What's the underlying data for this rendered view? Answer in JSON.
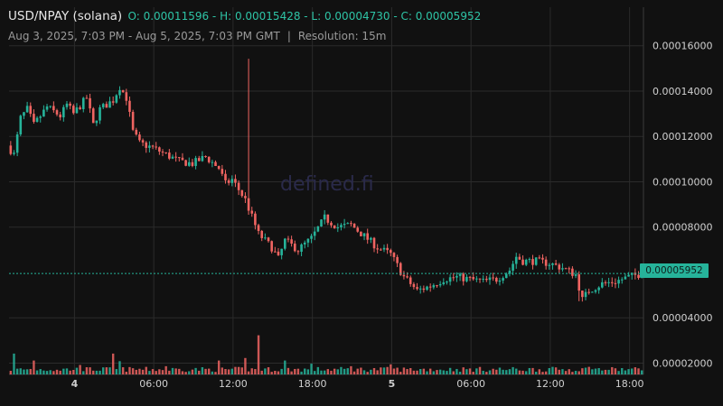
{
  "header": {
    "pair": "USD/NPAY (solana)",
    "ohlc": "O: 0.00011596 - H: 0.00015428 - L: 0.00004730 - C: 0.00005952",
    "range": "Aug 3, 2025, 7:03 PM - Aug 5, 2025, 7:03 PM GMT",
    "separator": "|",
    "resolution": "Resolution: 15m"
  },
  "watermark": "defined.fi",
  "last_price_label": "0.00005952",
  "colors": {
    "up": "#26b39a",
    "down": "#ef6461",
    "background": "#111111",
    "grid": "#2b2b2b",
    "axis_text": "#d0d0d0"
  },
  "chart_data": {
    "type": "candlestick",
    "title": "USD/NPAY (solana)",
    "resolution": "15m",
    "y_ticks": [
      "0.00016000",
      "0.00014000",
      "0.00012000",
      "0.00010000",
      "0.00008000",
      "0.00004000",
      "0.00002000"
    ],
    "ylim": [
      1.5e-05,
      0.000177
    ],
    "x_ticks": [
      "4",
      "06:00",
      "12:00",
      "18:00",
      "5",
      "06:00",
      "12:00",
      "18:00"
    ],
    "x_tick_hours_from_start": [
      4.95,
      10.95,
      16.95,
      22.95,
      28.95,
      34.95,
      40.95,
      46.95
    ],
    "grid": true,
    "last_price": 5.952e-05,
    "open": 0.00011596,
    "high": 0.00015428,
    "low": 4.73e-05,
    "close": 5.952e-05,
    "close_path": [
      [
        0,
        0.000116
      ],
      [
        0.5,
        0.000112
      ],
      [
        1,
        0.000128
      ],
      [
        1.5,
        0.000132
      ],
      [
        2,
        0.000125
      ],
      [
        3,
        0.000133
      ],
      [
        4,
        0.000129
      ],
      [
        4.5,
        0.000134
      ],
      [
        5,
        0.00013
      ],
      [
        6,
        0.000137
      ],
      [
        6.5,
        0.000125
      ],
      [
        7,
        0.000132
      ],
      [
        8,
        0.000136
      ],
      [
        8.5,
        0.000142
      ],
      [
        9,
        0.000137
      ],
      [
        9.5,
        0.000122
      ],
      [
        10,
        0.000117
      ],
      [
        11,
        0.000115
      ],
      [
        12,
        0.000112
      ],
      [
        13,
        0.000109
      ],
      [
        14,
        0.000108
      ],
      [
        15,
        0.000111
      ],
      [
        16,
        0.000106
      ],
      [
        16.5,
        9.9e-05
      ],
      [
        17,
        0.000101
      ],
      [
        18,
        9.2e-05
      ],
      [
        19,
        7.7e-05
      ],
      [
        20,
        7.1e-05
      ],
      [
        20.5,
        6.6e-05
      ],
      [
        21,
        7.4e-05
      ],
      [
        22,
        7e-05
      ],
      [
        23,
        7.5e-05
      ],
      [
        24,
        8.4e-05
      ],
      [
        25,
        8e-05
      ],
      [
        26,
        8.1e-05
      ],
      [
        27,
        7.6e-05
      ],
      [
        28,
        7.1e-05
      ],
      [
        29,
        6.8e-05
      ],
      [
        30,
        5.8e-05
      ],
      [
        31,
        5.2e-05
      ],
      [
        32,
        5.4e-05
      ],
      [
        33,
        5.7e-05
      ],
      [
        34,
        5.8e-05
      ],
      [
        35,
        5.7e-05
      ],
      [
        36,
        5.6e-05
      ],
      [
        37,
        5.7e-05
      ],
      [
        38,
        6.1e-05
      ],
      [
        38.5,
        6.7e-05
      ],
      [
        39,
        6.5e-05
      ],
      [
        40,
        6.5e-05
      ],
      [
        41,
        6.4e-05
      ],
      [
        42,
        6.2e-05
      ],
      [
        43,
        5.9e-05
      ],
      [
        43.5,
        4.8e-05
      ],
      [
        44,
        5.2e-05
      ],
      [
        45,
        5.5e-05
      ],
      [
        46,
        5.6e-05
      ],
      [
        47,
        5.8e-05
      ],
      [
        48,
        5.95e-05
      ]
    ],
    "volume_spikes": [
      [
        0.5,
        0.33
      ],
      [
        2,
        0.22
      ],
      [
        5.5,
        0.15
      ],
      [
        8,
        0.33
      ],
      [
        8.5,
        0.21
      ],
      [
        12,
        0.13
      ],
      [
        16,
        0.22
      ],
      [
        18,
        0.26
      ],
      [
        19,
        0.62
      ],
      [
        21,
        0.22
      ],
      [
        23,
        0.17
      ],
      [
        26,
        0.13
      ],
      [
        29,
        0.16
      ],
      [
        41,
        0.1
      ],
      [
        44,
        0.12
      ]
    ]
  }
}
